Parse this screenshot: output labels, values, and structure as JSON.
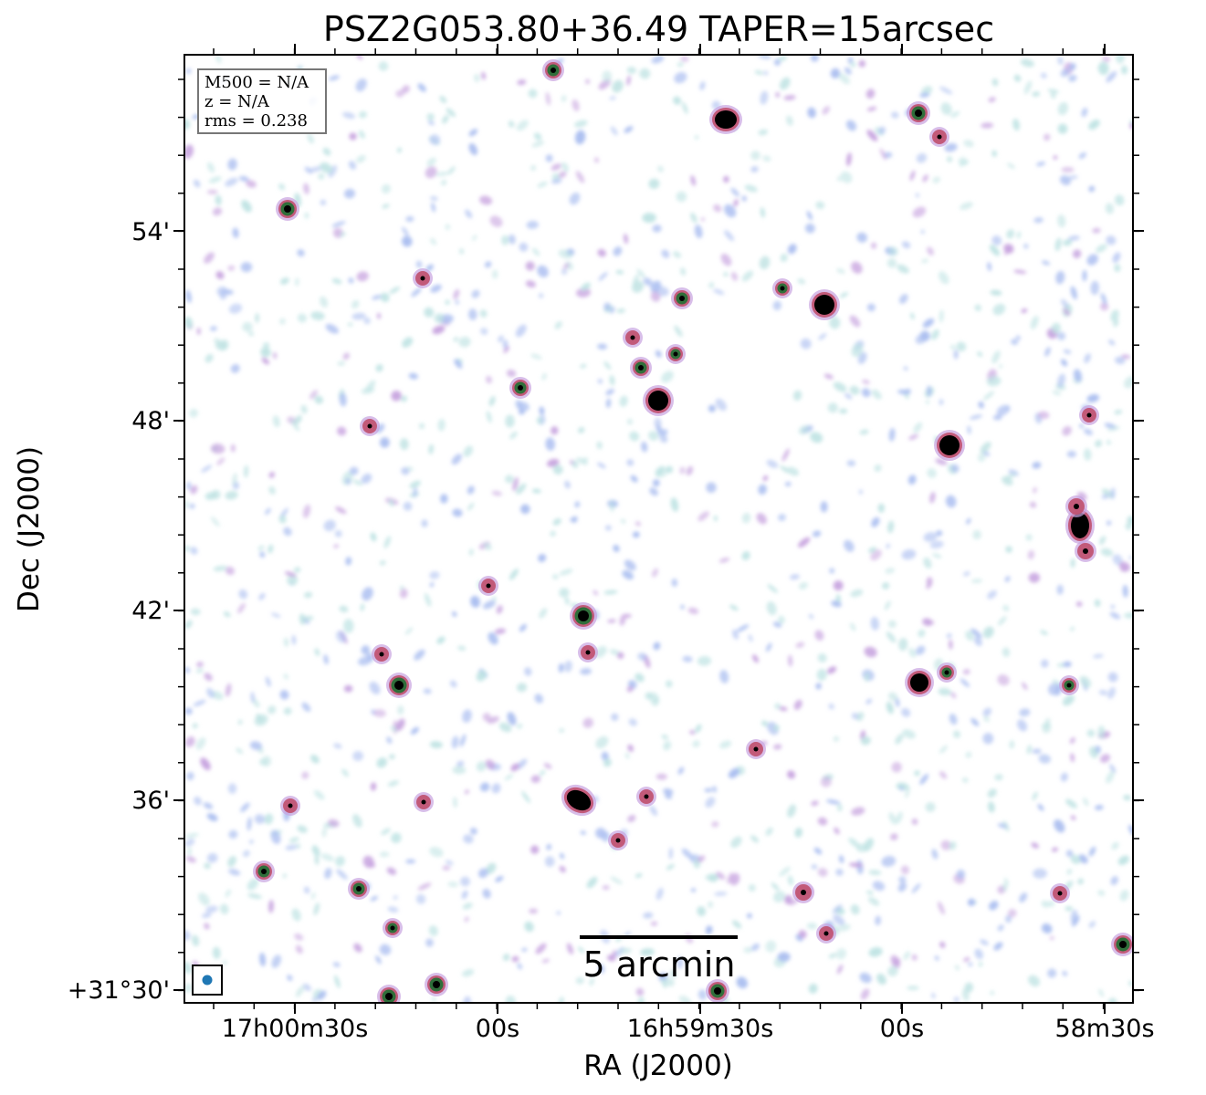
{
  "title": "PSZ2G053.80+36.49 TAPER=15arcsec",
  "axes": {
    "xlabel": "RA (J2000)",
    "ylabel": "Dec (J2000)",
    "x_ticks": [
      "17h00m30s",
      "00s",
      "16h59m30s",
      "00s",
      "58m30s"
    ],
    "y_ticks": [
      "54'",
      "48'",
      "42'",
      "36'",
      "+31°30'"
    ]
  },
  "info": {
    "m500": "M500 = N/A",
    "z": "z = N/A",
    "rms": "rms = 0.238"
  },
  "scalebar": {
    "label": "5 arcmin"
  },
  "colors": {
    "faint_noise": "#bfe3e3",
    "noise_blue": "#a9bdf0",
    "noise_purple": "#c7a3df",
    "mid_red": "#c0506e",
    "bright_green": "#2f6e3a",
    "core": "#000000",
    "beam": "#1f77b4"
  }
}
